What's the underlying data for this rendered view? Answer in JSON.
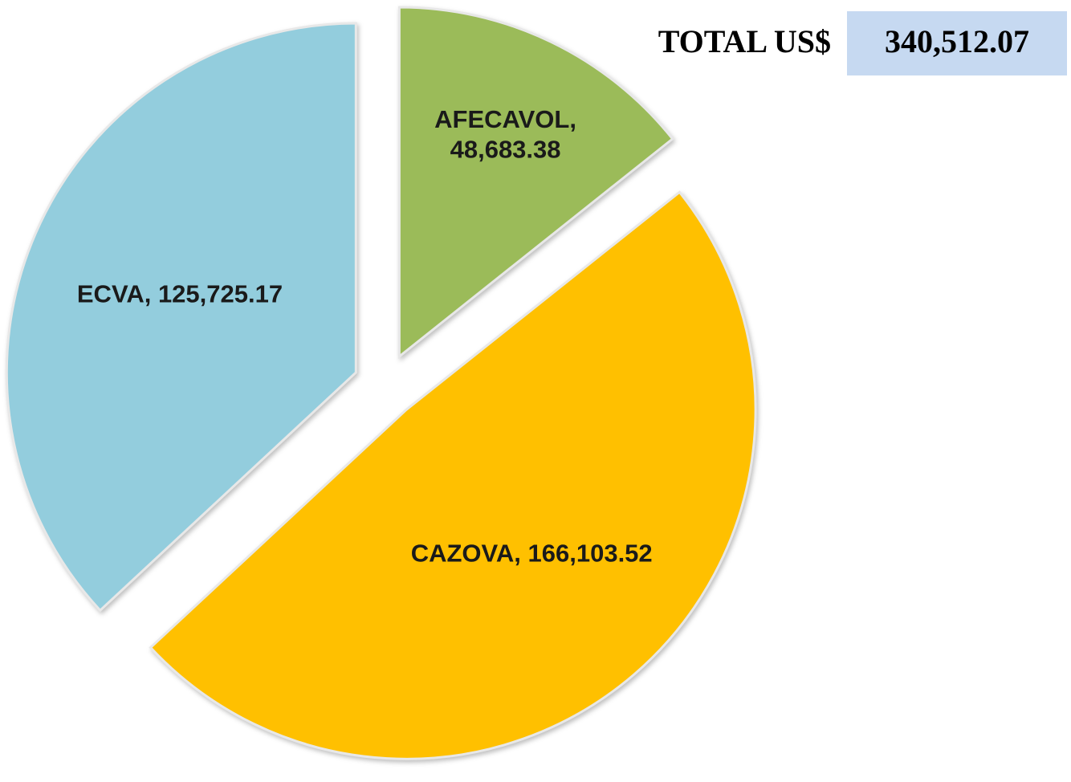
{
  "chart_data": {
    "type": "pie",
    "categories": [
      "AFECAVOL",
      "CAZOVA",
      "ECVA"
    ],
    "values": [
      48683.38,
      166103.52,
      125725.17
    ],
    "value_labels": [
      "48,683.38",
      "166,103.52",
      "125,725.17"
    ],
    "colors": [
      "#9bbb59",
      "#ffc000",
      "#93cddd"
    ],
    "exploded": true,
    "total_label": "TOTAL US$",
    "total": "340,512.07"
  }
}
